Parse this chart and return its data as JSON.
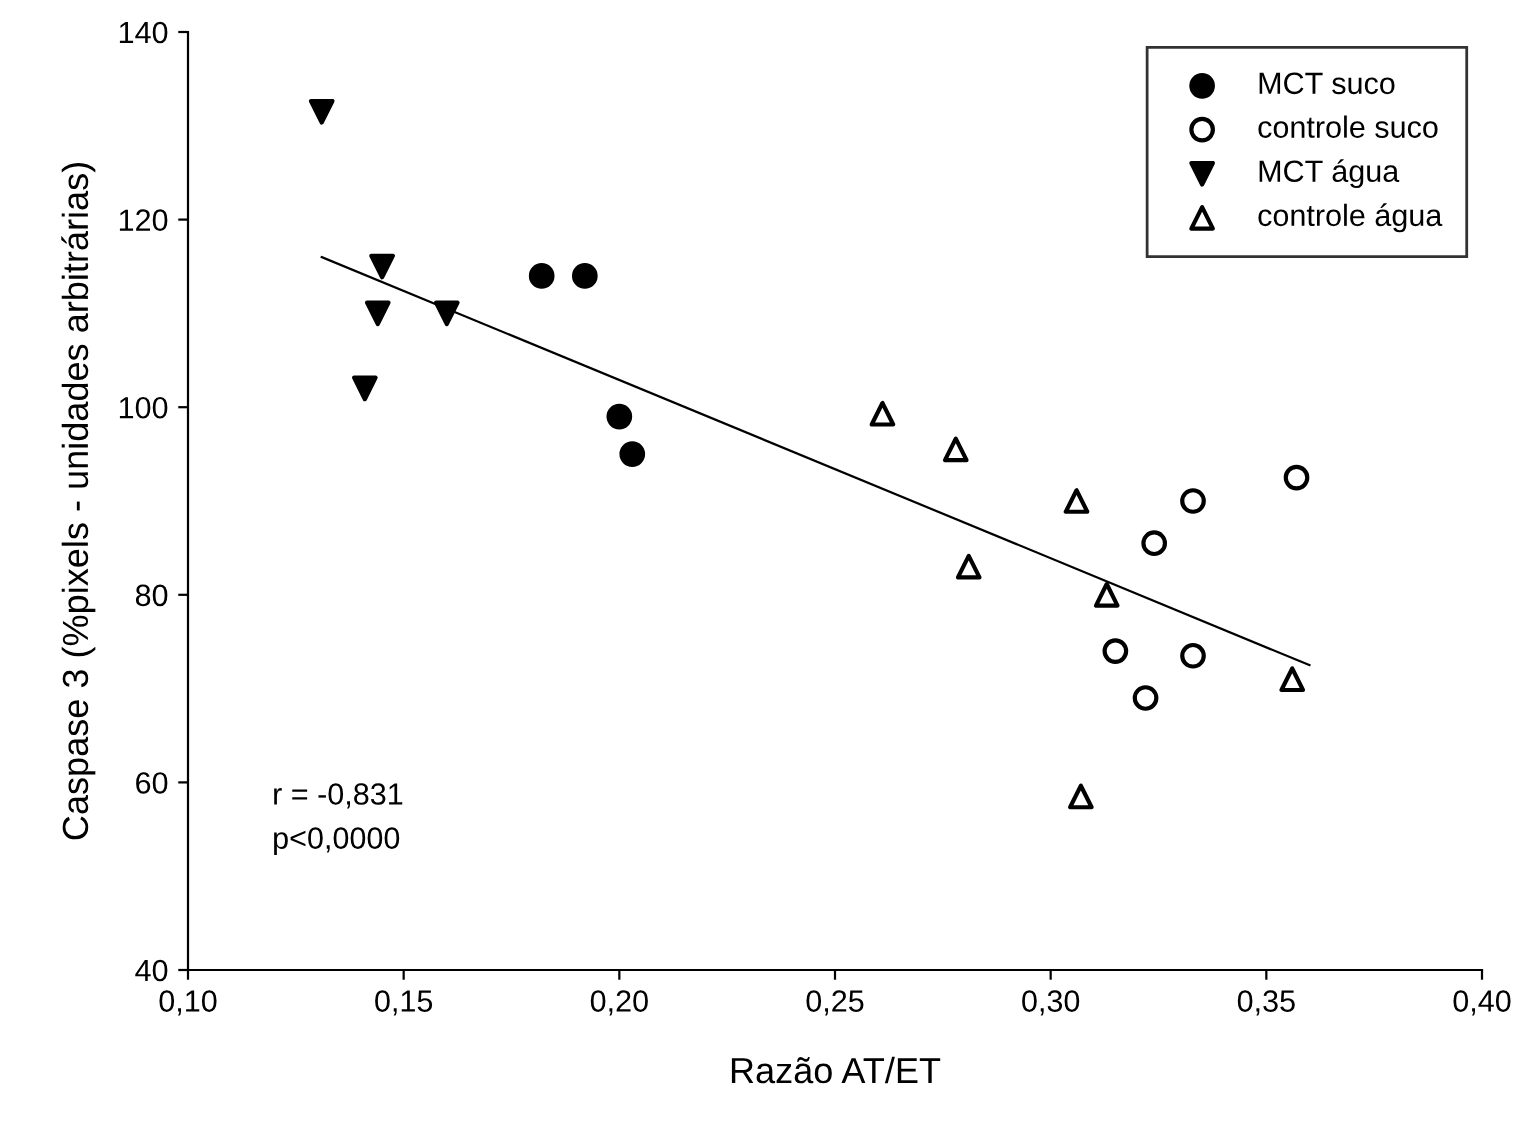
{
  "chart_data": {
    "type": "scatter",
    "xlabel": "Razão AT/ET",
    "ylabel": "Caspase 3 (%pixels - unidades arbitrárias)",
    "xlim": [
      0.1,
      0.4
    ],
    "ylim": [
      40,
      140
    ],
    "xticks": [
      {
        "value": 0.1,
        "label": "0,10"
      },
      {
        "value": 0.15,
        "label": "0,15"
      },
      {
        "value": 0.2,
        "label": "0,20"
      },
      {
        "value": 0.25,
        "label": "0,25"
      },
      {
        "value": 0.3,
        "label": "0,30"
      },
      {
        "value": 0.35,
        "label": "0,35"
      },
      {
        "value": 0.4,
        "label": "0,40"
      }
    ],
    "yticks": [
      40,
      60,
      80,
      100,
      120,
      140
    ],
    "grid": false,
    "legend": "top right",
    "series": [
      {
        "name": "MCT suco",
        "color": "#000000",
        "marker": "circle",
        "x": [
          0.182,
          0.192,
          0.2,
          0.203
        ],
        "values": [
          114,
          114,
          99,
          95
        ]
      },
      {
        "name": "controle suco",
        "color": "#000000",
        "marker": "circle_open",
        "x": [
          0.315,
          0.322,
          0.324,
          0.333,
          0.333,
          0.357
        ],
        "values": [
          74,
          69,
          85.5,
          90,
          73.5,
          92.5
        ]
      },
      {
        "name": "MCT água",
        "color": "#000000",
        "marker": "triangle_down",
        "x": [
          0.131,
          0.145,
          0.144,
          0.141,
          0.16
        ],
        "values": [
          131.5,
          115,
          110,
          102,
          110
        ]
      },
      {
        "name": "controle água",
        "color": "#000000",
        "marker": "triangle_open",
        "x": [
          0.261,
          0.278,
          0.281,
          0.306,
          0.313,
          0.307,
          0.356
        ],
        "values": [
          99.3,
          95.5,
          83,
          90,
          80,
          58.5,
          71
        ]
      },
      {
        "type": "line",
        "color": "#000000",
        "x": [
          0.131,
          0.36
        ],
        "values": [
          116,
          72.5
        ]
      }
    ],
    "annotations": [
      "r = -0,831",
      "p<0,0000"
    ]
  }
}
